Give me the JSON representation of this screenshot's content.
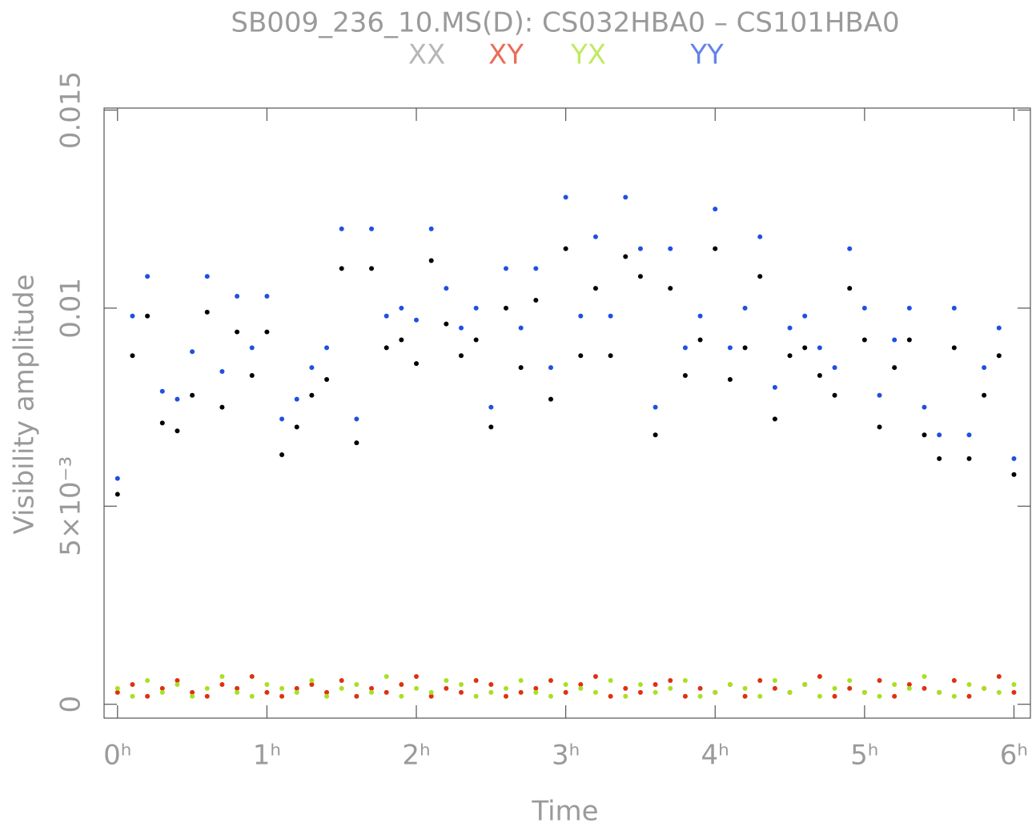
{
  "chart_data": {
    "type": "scatter",
    "title": "SB009_236_10.MS(D): CS032HBA0 – CS101HBA0",
    "x_label": "Time",
    "y_label": "Visibility amplitude",
    "legend": "top",
    "grid": false,
    "xlim": [
      -0.09,
      6.11
    ],
    "ylim": [
      -0.00035,
      0.01505
    ],
    "xticks": [
      {
        "value": 0,
        "label": "0ʰ"
      },
      {
        "value": 1,
        "label": "1ʰ"
      },
      {
        "value": 2,
        "label": "2ʰ"
      },
      {
        "value": 3,
        "label": "3ʰ"
      },
      {
        "value": 4,
        "label": "4ʰ"
      },
      {
        "value": 5,
        "label": "5ʰ"
      },
      {
        "value": 6,
        "label": "6ʰ"
      }
    ],
    "yticks": [
      0,
      {
        "value": 0.005,
        "label": "5×10⁻³"
      },
      0.01,
      0.015
    ],
    "x": [
      0,
      0.1,
      0.2,
      0.3,
      0.4,
      0.5,
      0.6,
      0.7,
      0.8,
      0.9,
      1,
      1.1,
      1.2,
      1.3,
      1.4,
      1.5,
      1.6,
      1.7,
      1.8,
      1.9,
      2,
      2.1,
      2.2,
      2.3,
      2.4,
      2.5,
      2.6,
      2.7,
      2.8,
      2.9,
      3,
      3.1,
      3.2,
      3.3,
      3.4,
      3.5,
      3.6,
      3.7,
      3.8,
      3.9,
      4,
      4.1,
      4.2,
      4.3,
      4.4,
      4.5,
      4.6,
      4.7,
      4.8,
      4.9,
      5,
      5.1,
      5.2,
      5.3,
      5.4,
      5.5,
      5.6,
      5.7,
      5.8,
      5.9,
      6
    ],
    "series": [
      {
        "name": "XX",
        "color": "#000000",
        "values": [
          0.0053,
          0.0088,
          0.0098,
          0.0071,
          0.0069,
          0.0078,
          0.0099,
          0.0075,
          0.0094,
          0.0083,
          0.0094,
          0.0063,
          0.007,
          0.0078,
          0.0082,
          0.011,
          0.0066,
          0.011,
          0.009,
          0.0092,
          0.0086,
          0.0112,
          0.0096,
          0.0088,
          0.0092,
          0.007,
          0.01,
          0.0085,
          0.0102,
          0.0077,
          0.0115,
          0.0088,
          0.0105,
          0.0088,
          0.0113,
          0.0108,
          0.0068,
          0.0105,
          0.0083,
          0.0092,
          0.0115,
          0.0082,
          0.009,
          0.0108,
          0.0072,
          0.0088,
          0.009,
          0.0083,
          0.0078,
          0.0105,
          0.0092,
          0.007,
          0.0085,
          0.0092,
          0.0068,
          0.0062,
          0.009,
          0.0062,
          0.0078,
          0.0088,
          0.0058
        ]
      },
      {
        "name": "XY",
        "color": "#e03010",
        "values": [
          0.0003,
          0.0005,
          0.0002,
          0.0004,
          0.0006,
          0.0003,
          0.0002,
          0.0005,
          0.0004,
          0.0007,
          0.0003,
          0.0002,
          0.0004,
          0.0005,
          0.0003,
          0.0006,
          0.0002,
          0.0004,
          0.0003,
          0.0005,
          0.0007,
          0.0002,
          0.0004,
          0.0003,
          0.0006,
          0.0005,
          0.0002,
          0.0003,
          0.0004,
          0.0006,
          0.0003,
          0.0005,
          0.0007,
          0.0002,
          0.0004,
          0.0003,
          0.0005,
          0.0006,
          0.0002,
          0.0004,
          0.0003,
          0.0005,
          0.0002,
          0.0006,
          0.0004,
          0.0003,
          0.0005,
          0.0007,
          0.0002,
          0.0004,
          0.0003,
          0.0006,
          0.0002,
          0.0005,
          0.0004,
          0.0003,
          0.0006,
          0.0002,
          0.0004,
          0.0007,
          0.0003
        ]
      },
      {
        "name": "YX",
        "color": "#a8e020",
        "values": [
          0.0004,
          0.0002,
          0.0006,
          0.0003,
          0.0005,
          0.0002,
          0.0004,
          0.0007,
          0.0003,
          0.0002,
          0.0005,
          0.0004,
          0.0003,
          0.0006,
          0.0002,
          0.0004,
          0.0005,
          0.0003,
          0.0007,
          0.0002,
          0.0004,
          0.0003,
          0.0006,
          0.0005,
          0.0002,
          0.0003,
          0.0004,
          0.0006,
          0.0003,
          0.0002,
          0.0005,
          0.0004,
          0.0003,
          0.0006,
          0.0002,
          0.0005,
          0.0003,
          0.0004,
          0.0006,
          0.0002,
          0.0003,
          0.0005,
          0.0004,
          0.0002,
          0.0006,
          0.0003,
          0.0005,
          0.0002,
          0.0004,
          0.0006,
          0.0003,
          0.0002,
          0.0005,
          0.0004,
          0.0007,
          0.0003,
          0.0002,
          0.0005,
          0.0004,
          0.0003,
          0.0005
        ]
      },
      {
        "name": "YY",
        "color": "#2050e0",
        "values": [
          0.0057,
          0.0098,
          0.0108,
          0.0079,
          0.0077,
          0.0089,
          0.0108,
          0.0084,
          0.0103,
          0.009,
          0.0103,
          0.0072,
          0.0077,
          0.0085,
          0.009,
          0.012,
          0.0072,
          0.012,
          0.0098,
          0.01,
          0.0097,
          0.012,
          0.0105,
          0.0095,
          0.01,
          0.0075,
          0.011,
          0.0095,
          0.011,
          0.0085,
          0.0128,
          0.0098,
          0.0118,
          0.0098,
          0.0128,
          0.0115,
          0.0075,
          0.0115,
          0.009,
          0.0098,
          0.0125,
          0.009,
          0.01,
          0.0118,
          0.008,
          0.0095,
          0.0098,
          0.009,
          0.0085,
          0.0115,
          0.01,
          0.0078,
          0.0092,
          0.01,
          0.0075,
          0.0068,
          0.01,
          0.0068,
          0.0085,
          0.0095,
          0.0062
        ]
      }
    ]
  }
}
